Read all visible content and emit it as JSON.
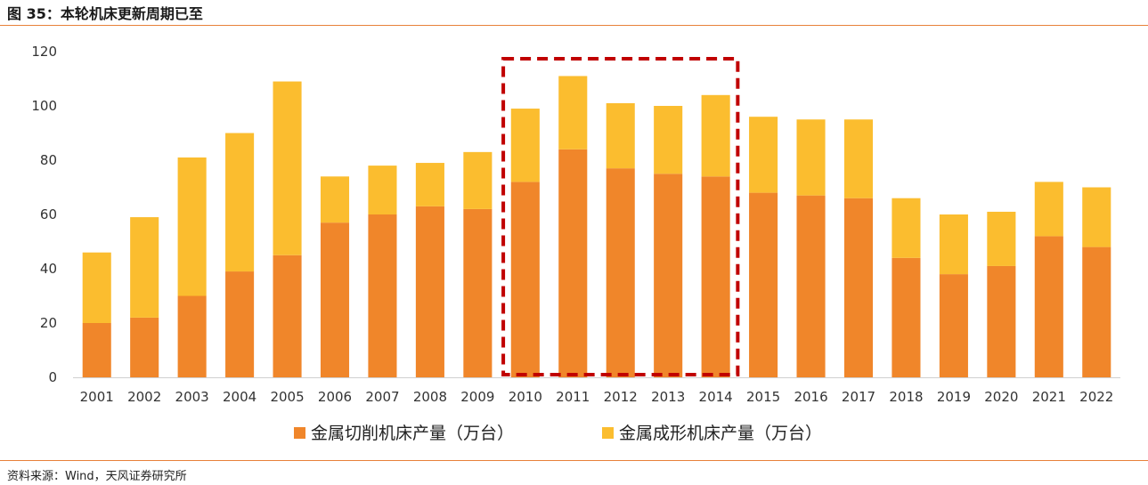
{
  "figure": {
    "title": "图 35：本轮机床更新周期已至",
    "source": "资料来源：Wind，天风证券研究所"
  },
  "colors": {
    "accent_rule": "#e8813a",
    "series1": "#f0862a",
    "series2": "#fbbd2f",
    "highlight_box": "#c00000"
  },
  "chart_data": {
    "type": "bar",
    "stacked": true,
    "categories": [
      "2001",
      "2002",
      "2003",
      "2004",
      "2005",
      "2006",
      "2007",
      "2008",
      "2009",
      "2010",
      "2011",
      "2012",
      "2013",
      "2014",
      "2015",
      "2016",
      "2017",
      "2018",
      "2019",
      "2020",
      "2021",
      "2022"
    ],
    "series": [
      {
        "name": "金属切削机床产量（万台）",
        "values": [
          20,
          22,
          30,
          39,
          45,
          57,
          60,
          63,
          62,
          72,
          84,
          77,
          75,
          74,
          68,
          67,
          66,
          44,
          38,
          41,
          52,
          48
        ]
      },
      {
        "name": "金属成形机床产量（万台）",
        "values": [
          26,
          37,
          51,
          51,
          64,
          17,
          18,
          16,
          21,
          27,
          27,
          24,
          25,
          30,
          28,
          28,
          29,
          22,
          22,
          20,
          20,
          22
        ]
      }
    ],
    "ylim": [
      0,
      120
    ],
    "yticks": [
      0,
      20,
      40,
      60,
      80,
      100,
      120
    ],
    "xlabel": "",
    "ylabel": "",
    "grid": false,
    "legend": "bottom",
    "annotation": {
      "type": "dashed-box",
      "from_category": "2010",
      "to_category": "2014"
    }
  }
}
